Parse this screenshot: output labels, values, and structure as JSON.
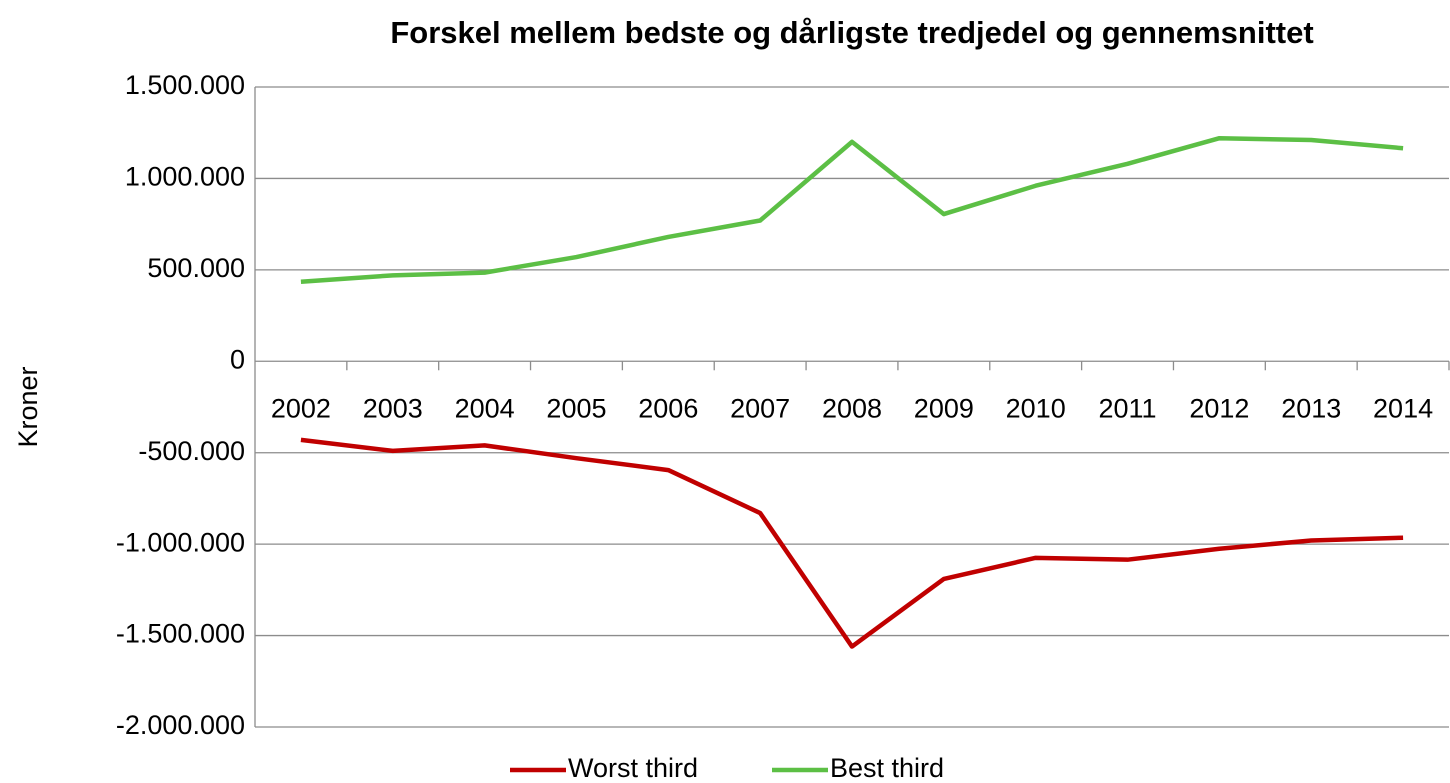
{
  "chart_data": {
    "type": "line",
    "title": "Forskel mellem bedste og dårligste tredjedel og gennemsnittet",
    "y_label": "Kroner",
    "categories": [
      "2002",
      "2003",
      "2004",
      "2005",
      "2006",
      "2007",
      "2008",
      "2009",
      "2010",
      "2011",
      "2012",
      "2013",
      "2014"
    ],
    "series": [
      {
        "name": "Worst third",
        "color": "#c00000",
        "values": [
          -430000,
          -490000,
          -460000,
          -530000,
          -595000,
          -830000,
          -1560000,
          -1190000,
          -1075000,
          -1085000,
          -1025000,
          -980000,
          -965000
        ]
      },
      {
        "name": "Best third",
        "color": "#5cbf45",
        "values": [
          435000,
          470000,
          485000,
          570000,
          680000,
          770000,
          1200000,
          805000,
          960000,
          1080000,
          1220000,
          1210000,
          1165000
        ]
      }
    ],
    "ylim": [
      -2000000,
      1500000
    ],
    "yticks": [
      {
        "value": -2000000,
        "label": "-2.000.000"
      },
      {
        "value": -1500000,
        "label": "-1.500.000"
      },
      {
        "value": -1000000,
        "label": "-1.000.000"
      },
      {
        "value": -500000,
        "label": "-500.000"
      },
      0,
      {
        "value": 500000,
        "label": "500.000"
      },
      {
        "value": 1000000,
        "label": "1.000.000"
      },
      {
        "value": 1500000,
        "label": "1.500.000"
      }
    ],
    "grid": true,
    "legend": "bottom"
  }
}
